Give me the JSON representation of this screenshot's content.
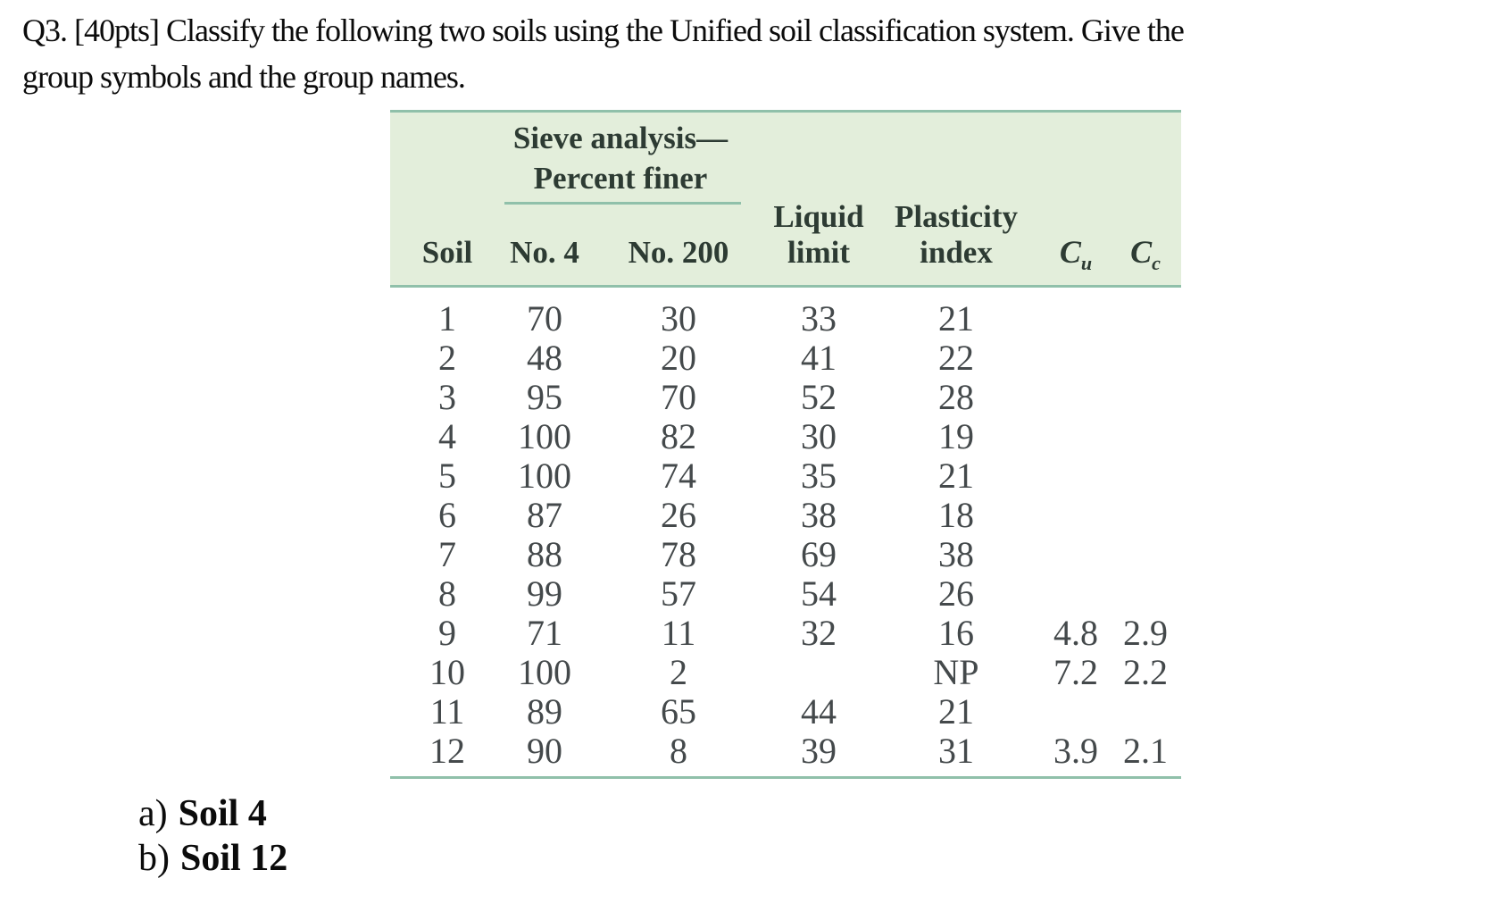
{
  "question": {
    "line1": "Q3. [40pts] Classify the following two soils using the Unified soil classification system. Give the",
    "line2": "group symbols and the group names."
  },
  "table": {
    "sieve_header": {
      "line1": "Sieve analysis—",
      "line2": "Percent finer"
    },
    "columns": {
      "soil": "Soil",
      "no4": "No. 4",
      "no200": "No. 200",
      "liquid_line1": "Liquid",
      "liquid_line2": "limit",
      "plasticity_line1": "Plasticity",
      "plasticity_line2": "index",
      "cu_base": "C",
      "cu_sub": "u",
      "cc_base": "C",
      "cc_sub": "c"
    },
    "rows": [
      {
        "cells": [
          "1",
          "70",
          "30",
          "33",
          "21",
          "",
          ""
        ]
      },
      {
        "cells": [
          "2",
          "48",
          "20",
          "41",
          "22",
          "",
          ""
        ]
      },
      {
        "cells": [
          "3",
          "95",
          "70",
          "52",
          "28",
          "",
          ""
        ]
      },
      {
        "cells": [
          "4",
          "100",
          "82",
          "30",
          "19",
          "",
          ""
        ]
      },
      {
        "cells": [
          "5",
          "100",
          "74",
          "35",
          "21",
          "",
          ""
        ]
      },
      {
        "cells": [
          "6",
          "87",
          "26",
          "38",
          "18",
          "",
          ""
        ]
      },
      {
        "cells": [
          "7",
          "88",
          "78",
          "69",
          "38",
          "",
          ""
        ]
      },
      {
        "cells": [
          "8",
          "99",
          "57",
          "54",
          "26",
          "",
          ""
        ]
      },
      {
        "cells": [
          "9",
          "71",
          "11",
          "32",
          "16",
          "4.8",
          "2.9"
        ]
      },
      {
        "cells": [
          "10",
          "100",
          "2",
          "",
          "NP",
          "7.2",
          "2.2"
        ]
      },
      {
        "cells": [
          "11",
          "89",
          "65",
          "44",
          "21",
          "",
          ""
        ]
      },
      {
        "cells": [
          "12",
          "90",
          "8",
          "39",
          "31",
          "3.9",
          "2.1"
        ]
      }
    ]
  },
  "parts": [
    {
      "prefix": "a)",
      "label": "Soil 4"
    },
    {
      "prefix": "b)",
      "label": "Soil 12"
    }
  ],
  "colors": {
    "table_header_bg": "#e3eedb",
    "table_rule": "#90c0aa",
    "header_text": "#2d3b33",
    "body_text": "#44494b"
  }
}
